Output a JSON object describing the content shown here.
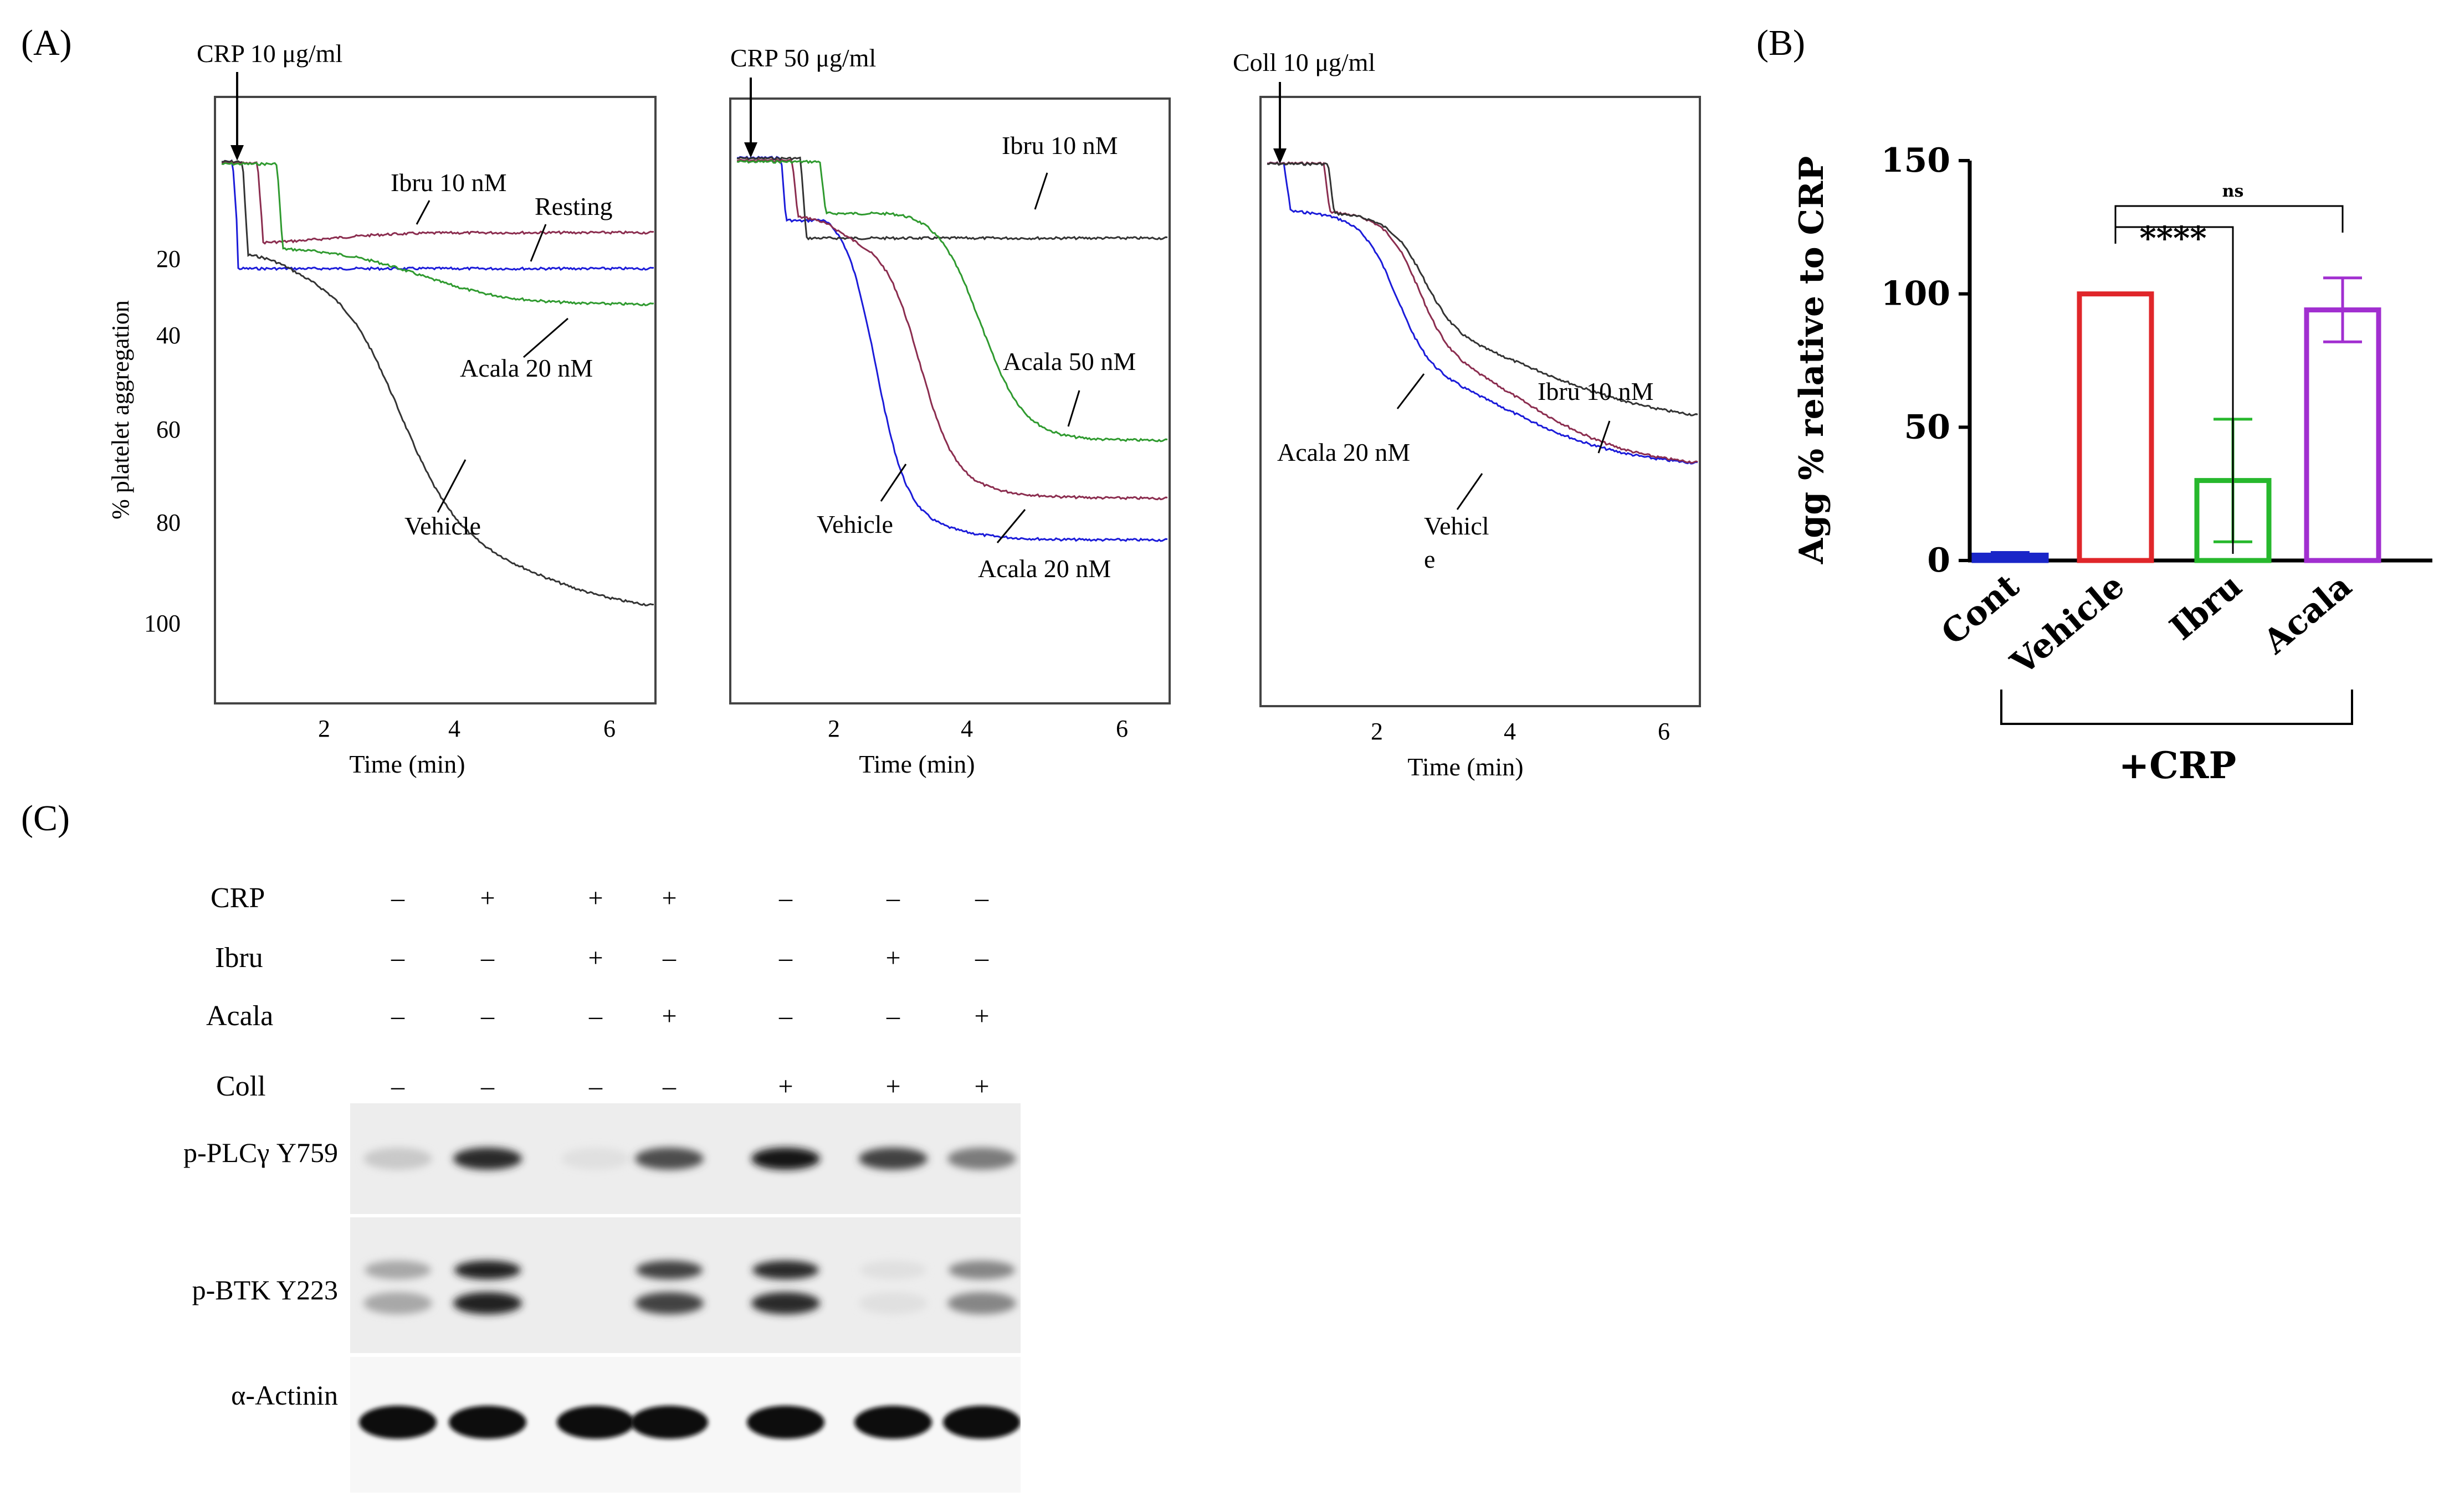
{
  "labels": {
    "A": "(A)",
    "B": "(B)",
    "C": "(C)"
  },
  "colors": {
    "black": "#333333",
    "red": "#8b2d4f",
    "blue": "#1b1bd9",
    "green": "#2f9a2f",
    "barCont": "#1a26c8",
    "barVehicle": "#e0262a",
    "barIbru": "#27b82d",
    "barAcala": "#a12fd0"
  },
  "panelA": {
    "ylabel": "% platelet aggregation",
    "yticks": [
      "20",
      "40",
      "60",
      "80",
      "100"
    ],
    "xlabel": "Time (min)",
    "charts": [
      {
        "agonist": "CRP 10 μg/ml",
        "xticks": [
          "2",
          "4",
          "6"
        ],
        "annotations": [
          "Ibru 10 nM",
          "Resting",
          "Acala 20 nM",
          "Vehicle"
        ]
      },
      {
        "agonist": "CRP 50 μg/ml",
        "xticks": [
          "2",
          "4",
          "6"
        ],
        "annotations": [
          "Ibru 10 nM",
          "Acala 50 nM",
          "Vehicle",
          "Acala 20 nM"
        ]
      },
      {
        "agonist": "Coll 10 μg/ml",
        "xticks": [
          "2",
          "4",
          "6"
        ],
        "annotations": [
          "Ibru 10 nM",
          "Acala 20 nM",
          "Vehicl",
          "e"
        ]
      }
    ]
  },
  "chart_data": {
    "type": "bar",
    "title": "",
    "ylabel": "Agg % relative to CRP",
    "xlabel": "",
    "ylim": [
      0,
      150
    ],
    "yticks": [
      "0",
      "50",
      "100",
      "150"
    ],
    "categories": [
      "Cont",
      "Vehicle",
      "Ibru",
      "Acala"
    ],
    "values": [
      2,
      100,
      30,
      94
    ],
    "error": [
      1,
      0,
      23,
      12
    ],
    "group_label": "+CRP",
    "significance": [
      "****",
      "ns"
    ]
  },
  "panelC": {
    "conditions": [
      {
        "name": "CRP",
        "signs": [
          "–",
          "+",
          "+",
          "+",
          "–",
          "–",
          "–"
        ]
      },
      {
        "name": "Ibru",
        "signs": [
          "–",
          "–",
          "+",
          "–",
          "–",
          "+",
          "–"
        ]
      },
      {
        "name": "Acala",
        "signs": [
          "–",
          "–",
          "–",
          "+",
          "–",
          "–",
          "+"
        ]
      },
      {
        "name": "Coll",
        "signs": [
          "–",
          "–",
          "–",
          "–",
          "+",
          "+",
          "+"
        ]
      }
    ],
    "blots": [
      {
        "name": "p-PLCγ Y759",
        "intensity": [
          0.15,
          0.85,
          0.05,
          0.7,
          0.95,
          0.75,
          0.5
        ]
      },
      {
        "name": "p-BTK Y223",
        "intensity": [
          0.3,
          0.9,
          0.0,
          0.75,
          0.85,
          0.05,
          0.45
        ]
      },
      {
        "name": "α-Actinin",
        "intensity": [
          1,
          1,
          1,
          1,
          1,
          1,
          1
        ]
      }
    ]
  }
}
